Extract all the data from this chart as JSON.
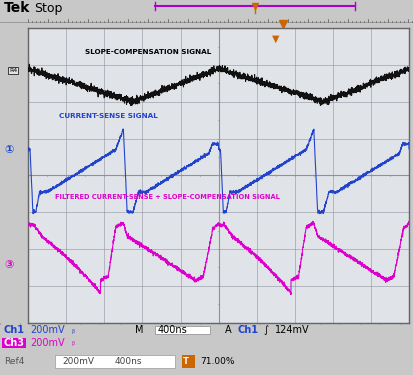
{
  "bg_color": "#c8c8c8",
  "screen_bg": "#e0e4e8",
  "grid_color": "#9090a0",
  "header_bg": "#f0f0f0",
  "ch1_color": "#2244cc",
  "ch3_color": "#dd00cc",
  "slope_color": "#111111",
  "marker_color": "#cc6600",
  "purple_bar_color": "#aa00cc",
  "bottom_bar_bg": "#c0c0c0",
  "ref_bar_bg": "#d0d0d0",
  "slope_label": "SLOPE-COMPENSATION SIGNAL",
  "current_label": "CURRENT-SENSE SIGNAL",
  "filtered_label": "FILTERED CURRENT-SENSE + SLOPE-COMPENSATION SIGNAL",
  "period": 5.0,
  "noise_slope": 0.045,
  "noise_current": 0.02,
  "noise_filtered": 0.025
}
